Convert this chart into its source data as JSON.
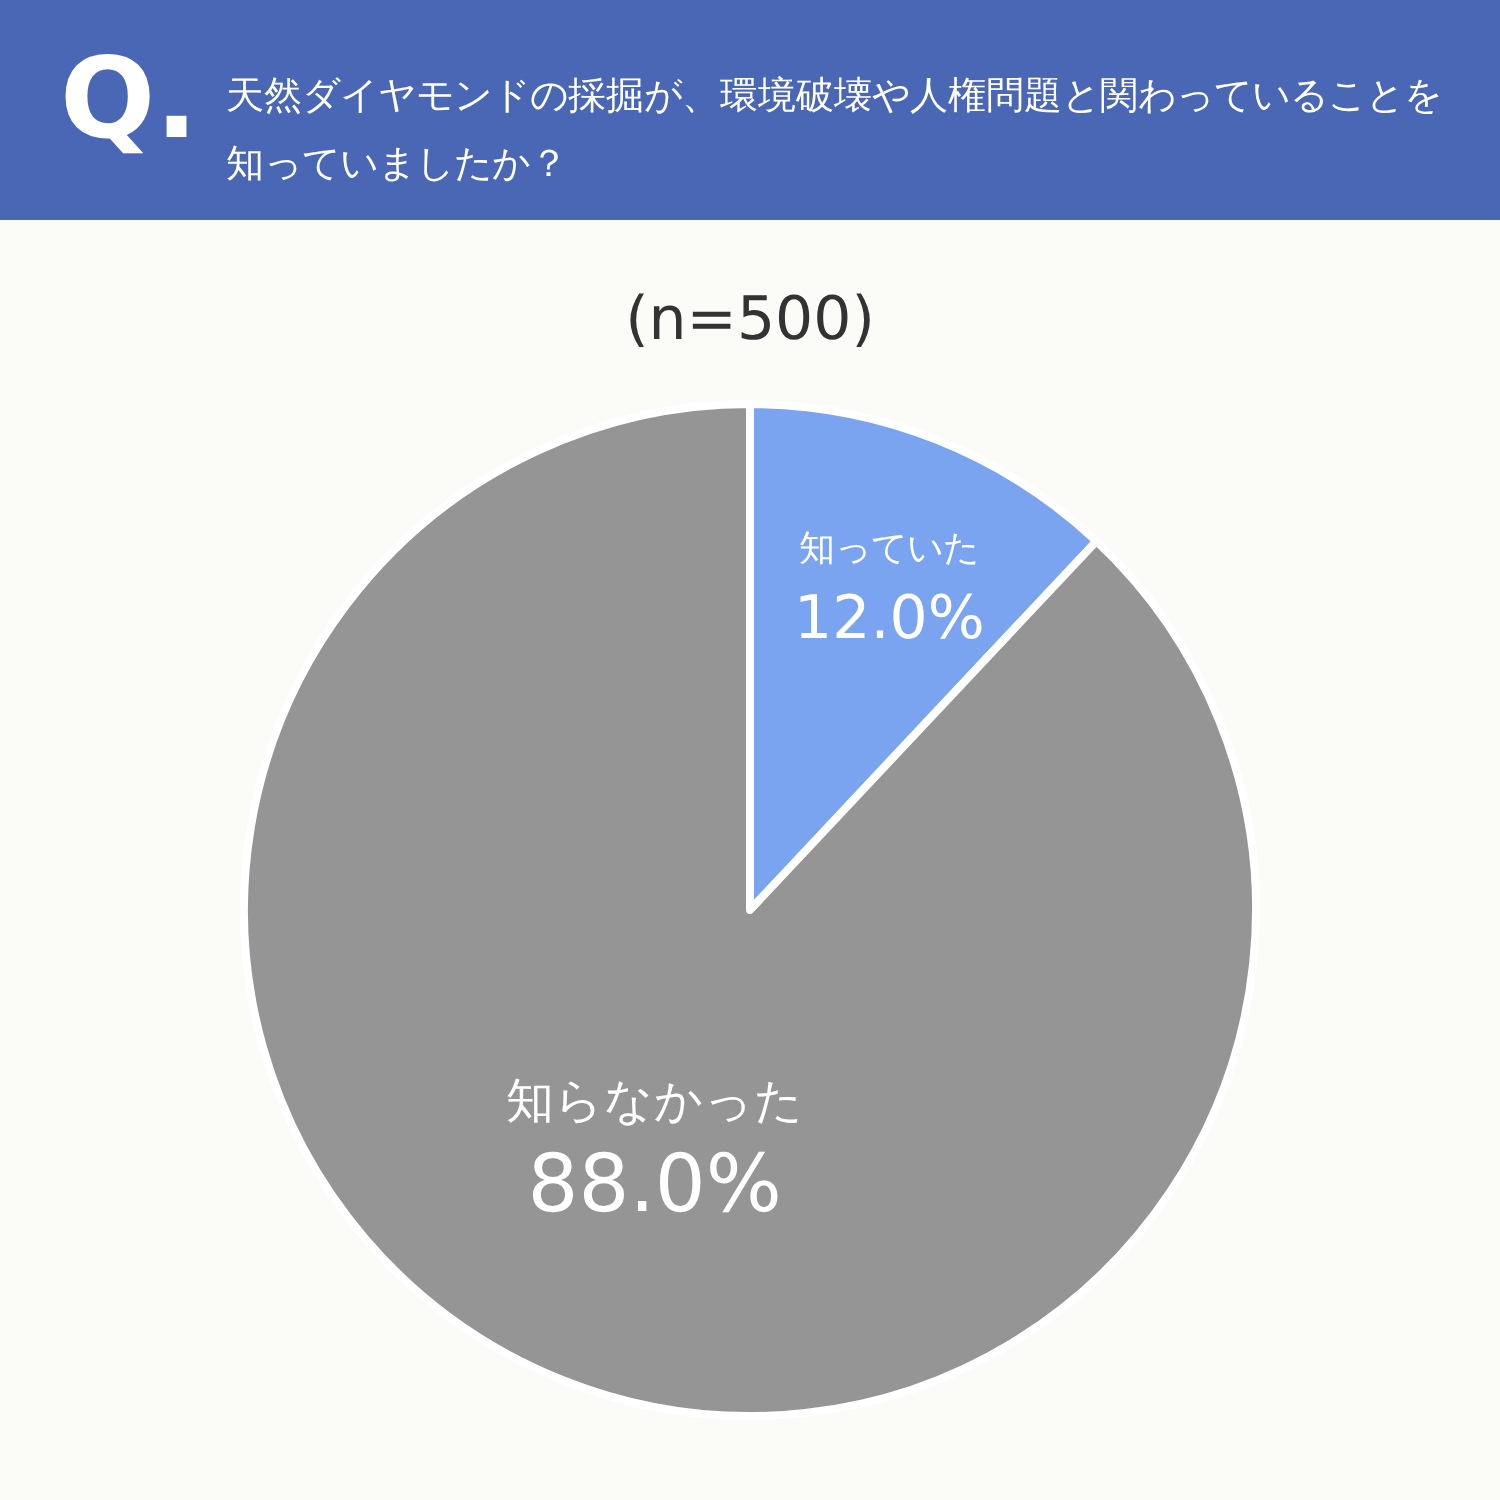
{
  "chart_data": {
    "type": "pie",
    "title": "天然ダイヤモンドの採掘が、環境破壊や人権問題と関わっていることを知っていましたか？",
    "subtitle": "(n=500)",
    "annotations": [
      "Q."
    ],
    "categories": [
      "知っていた",
      "知らなかった"
    ],
    "values": [
      12.0,
      88.0
    ],
    "colors": [
      "#7ba4f0",
      "#959595"
    ],
    "value_labels": [
      "12.0%",
      "88.0%"
    ],
    "legend": false
  }
}
